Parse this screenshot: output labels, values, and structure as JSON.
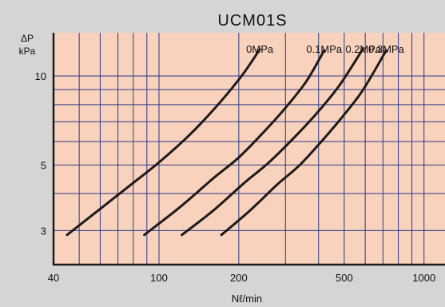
{
  "chart_data": {
    "type": "line",
    "title": "UCM01S",
    "xlabel": "Nℓ/min",
    "ylabel": "ΔP",
    "yunit": "kPa",
    "xscale": "log",
    "yscale": "log",
    "xlim": [
      40,
      1200
    ],
    "ylim": [
      2.3,
      14
    ],
    "grid": true,
    "x_ticks": [
      {
        "value": 40,
        "label": "40"
      },
      {
        "value": 100,
        "label": "100"
      },
      {
        "value": 200,
        "label": "200"
      },
      {
        "value": 500,
        "label": "500"
      },
      {
        "value": 1000,
        "label": "1000"
      }
    ],
    "y_ticks": [
      {
        "value": 3,
        "label": "3"
      },
      {
        "value": 5,
        "label": "5"
      },
      {
        "value": 10,
        "label": "10"
      }
    ],
    "series": [
      {
        "name": "0MPa",
        "x": [
          45,
          60,
          80,
          100,
          130,
          165,
          205,
          240
        ],
        "y": [
          2.9,
          3.55,
          4.35,
          5.1,
          6.3,
          7.9,
          10.0,
          12.3
        ]
      },
      {
        "name": "0.1MPa",
        "x": [
          88,
          120,
          160,
          200,
          250,
          300,
          360,
          420
        ],
        "y": [
          2.9,
          3.6,
          4.5,
          5.3,
          6.5,
          7.8,
          9.6,
          12.2
        ]
      },
      {
        "name": "0.2MPa",
        "x": [
          122,
          160,
          210,
          260,
          330,
          400,
          480,
          590
        ],
        "y": [
          2.9,
          3.5,
          4.35,
          5.1,
          6.3,
          7.6,
          9.3,
          12.4
        ]
      },
      {
        "name": "0.3MPa",
        "x": [
          172,
          220,
          280,
          340,
          420,
          500,
          590,
          720
        ],
        "y": [
          2.9,
          3.5,
          4.3,
          5.0,
          6.15,
          7.4,
          9.0,
          12.2
        ]
      }
    ]
  },
  "colors": {
    "plot_background": "#f9d2bd",
    "page_background": "#d5d5d5",
    "grid": "#2a3a86",
    "curve": "#1e1a1a",
    "frame": "#1e1a1a"
  }
}
